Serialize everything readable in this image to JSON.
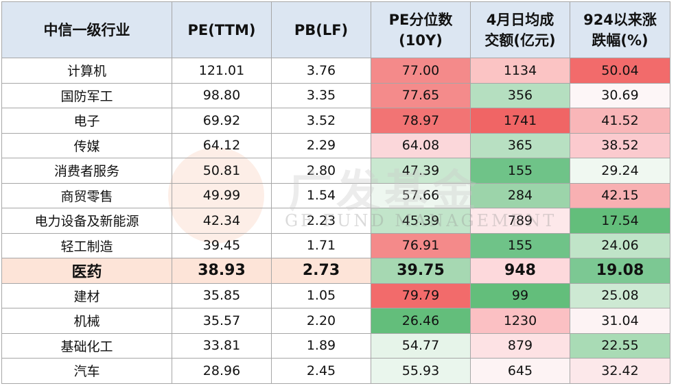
{
  "table": {
    "header": [
      "中信一级行业",
      "PE(TTM)",
      "PB(LF)",
      "PE分位数\n(10Y)",
      "4月日均成\n交额(亿元)",
      "924以来涨\n跌幅(%)"
    ],
    "rows": [
      [
        "计算机",
        "121.01",
        "3.76",
        "77.00",
        "1134",
        "50.04"
      ],
      [
        "国防军工",
        "98.80",
        "3.35",
        "77.65",
        "356",
        "30.69"
      ],
      [
        "电子",
        "69.92",
        "3.52",
        "78.97",
        "1741",
        "41.52"
      ],
      [
        "传媒",
        "64.12",
        "2.29",
        "64.08",
        "365",
        "38.52"
      ],
      [
        "消费者服务",
        "50.81",
        "2.80",
        "47.39",
        "155",
        "29.24"
      ],
      [
        "商贸零售",
        "49.99",
        "1.54",
        "57.66",
        "284",
        "42.15"
      ],
      [
        "电力设备及新能源",
        "42.34",
        "2.23",
        "45.39",
        "789",
        "17.54"
      ],
      [
        "轻工制造",
        "39.45",
        "1.71",
        "76.91",
        "155",
        "24.06"
      ],
      [
        "医药",
        "38.93",
        "2.73",
        "39.75",
        "948",
        "19.08"
      ],
      [
        "建材",
        "35.85",
        "1.05",
        "79.79",
        "99",
        "25.08"
      ],
      [
        "机械",
        "35.57",
        "2.20",
        "26.46",
        "1230",
        "31.04"
      ],
      [
        "基础化工",
        "33.81",
        "1.89",
        "54.77",
        "879",
        "22.55"
      ],
      [
        "汽车",
        "28.96",
        "2.45",
        "55.93",
        "645",
        "32.42"
      ]
    ],
    "cell_colors": [
      [
        "#f48a8a",
        "#fbc4c4",
        "#f26b6b"
      ],
      [
        "#f48b8b",
        "#b5dfc0",
        "#fdf6f7"
      ],
      [
        "#f27474",
        "#f06565",
        "#f9b6b8"
      ],
      [
        "#fbd7da",
        "#b8e0c2",
        "#fbcace"
      ],
      [
        "#c9e8d0",
        "#6fc388",
        "#f0f8f1"
      ],
      [
        "#eef7f0",
        "#9cd4aa",
        "#f8b0b2"
      ],
      [
        "#c2e5ca",
        "#fde8ea",
        "#63be7b"
      ],
      [
        "#f48a8a",
        "#6fc388",
        "#c0e4c8"
      ],
      [
        "#a6d8b2",
        "#fdd9dc",
        "#7cc893"
      ],
      [
        "#f26b6b",
        "#63be7b",
        "#cde9d3"
      ],
      [
        "#63be7b",
        "#fbc0c3",
        "#fdf3f4"
      ],
      [
        "#e6f4e9",
        "#fde2e4",
        "#a9dbb5"
      ],
      [
        "#eaf6ed",
        "#fdf3f4",
        "#fce8ea"
      ]
    ]
  },
  "watermark": {
    "logo_text": "广发基金",
    "sub_text": "GF FUND MANAGEMENT"
  }
}
